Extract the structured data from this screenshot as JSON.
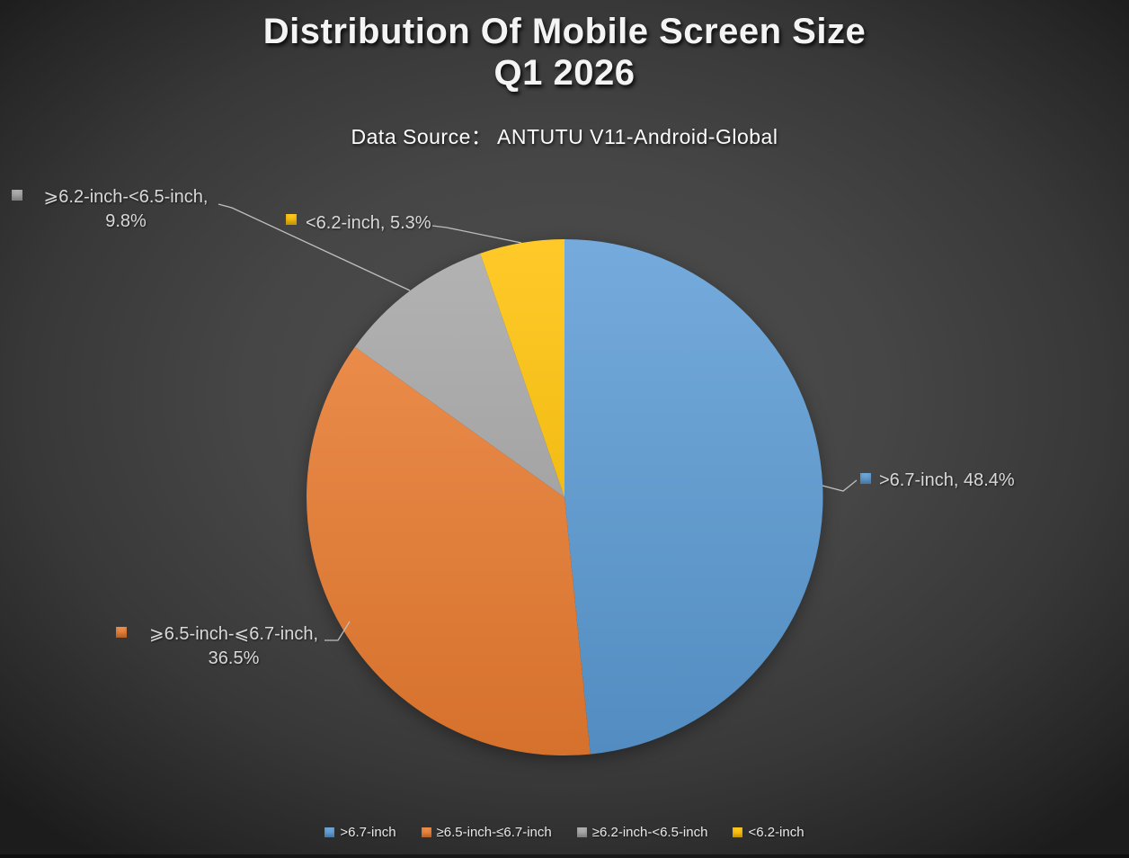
{
  "title": {
    "line1": "Distribution Of Mobile Screen Size",
    "line2": "Q1 2026"
  },
  "subtitle": "Data Source：  ANTUTU V11-Android-Global",
  "chart_data": {
    "type": "pie",
    "title": "Distribution Of Mobile Screen Size Q1 2026",
    "data_source_label": "Data Source：  ANTUTU V11-Android-Global",
    "unit": "percent",
    "start_angle_deg": 0,
    "direction": "clockwise",
    "legend_position": "bottom",
    "leader_line_color": "#bfbfbf",
    "slices": [
      {
        "label": ">6.7-inch",
        "value": 48.4,
        "color": "#5B9BD5",
        "callout_line1": ">6.7-inch, 48.4%",
        "callout_line2": ""
      },
      {
        "label": "≥6.5-inch-≤6.7-inch",
        "value": 36.5,
        "color": "#ED7D31",
        "callout_line1": "⩾6.5-inch-⩽6.7-inch,",
        "callout_line2": "36.5%"
      },
      {
        "label": "≥6.2-inch-<6.5-inch",
        "value": 9.8,
        "color": "#A5A5A5",
        "callout_line1": "⩾6.2-inch-<6.5-inch,",
        "callout_line2": "9.8%"
      },
      {
        "label": "<6.2-inch",
        "value": 5.3,
        "color": "#FFC000",
        "callout_line1": "<6.2-inch, 5.3%",
        "callout_line2": ""
      }
    ]
  }
}
